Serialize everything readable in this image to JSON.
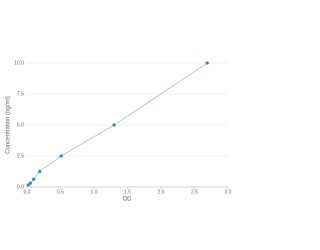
{
  "chart_data": {
    "type": "scatter",
    "x_label": "OD",
    "y_label": "Concentration (ng/ml)",
    "series": [
      {
        "color": "#3b7dd8",
        "x": [
          0.02,
          0.05,
          0.1,
          0.19,
          0.51,
          1.3,
          2.69
        ],
        "values": [
          0.16,
          0.31,
          0.63,
          1.25,
          2.5,
          5,
          10
        ]
      }
    ],
    "xlim": [
      0,
      3
    ],
    "ylim": [
      0,
      10
    ],
    "xticks": [
      {
        "value": 0,
        "label": "0.0"
      },
      0.5,
      {
        "value": 1,
        "label": "1.0"
      },
      1.5,
      {
        "value": 2,
        "label": "2.0"
      },
      2.5,
      {
        "value": 3,
        "label": "3.0"
      }
    ],
    "yticks": [
      {
        "value": 0,
        "label": "0.0"
      },
      2.5,
      {
        "value": 5,
        "label": "5.0"
      },
      7.5,
      {
        "value": 10,
        "label": "10.0"
      }
    ],
    "grid": true,
    "trendline": true
  }
}
